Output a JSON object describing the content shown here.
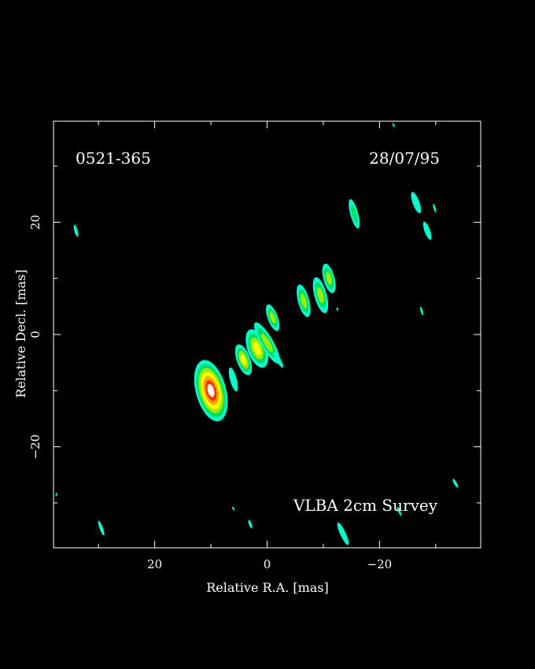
{
  "source_name": "0521-365",
  "date": "28/07/95",
  "survey_label": "VLBA 2cm Survey",
  "colors": {
    "background": "#000000",
    "frame": "#ffffff",
    "levels": [
      "#00ffcc",
      "#00dd66",
      "#99ee00",
      "#ffff00",
      "#ffaa00",
      "#ff3300",
      "#ffffff"
    ]
  },
  "chart_data": {
    "type": "contour",
    "title": "",
    "xlabel": "Relative R.A. [mas]",
    "ylabel": "Relative Decl. [mas]",
    "xlim": [
      38,
      -38
    ],
    "ylim": [
      -38,
      38
    ],
    "x_direction": "decreasing",
    "grid": false,
    "x_ticks": [
      {
        "value": 20,
        "label": "20"
      },
      {
        "value": 0,
        "label": "0"
      },
      {
        "value": -20,
        "label": "−20"
      }
    ],
    "y_ticks": [
      {
        "value": 20,
        "label": "20"
      },
      {
        "value": 0,
        "label": "0"
      },
      {
        "value": -20,
        "label": "−20"
      }
    ],
    "components": [
      {
        "x": 10.0,
        "y": -10.0,
        "major": 5.6,
        "minor": 2.7,
        "pa": 15,
        "peak_level": 6
      },
      {
        "x": 6.0,
        "y": -8.0,
        "major": 2.2,
        "minor": 0.6,
        "pa": 15,
        "peak_level": 0
      },
      {
        "x": 4.2,
        "y": -4.5,
        "major": 2.9,
        "minor": 1.2,
        "pa": 20,
        "peak_level": 3
      },
      {
        "x": 1.8,
        "y": -2.5,
        "major": 3.6,
        "minor": 1.7,
        "pa": 20,
        "peak_level": 3
      },
      {
        "x": 0.0,
        "y": -1.5,
        "major": 4.2,
        "minor": 1.1,
        "pa": 30,
        "peak_level": 2
      },
      {
        "x": -1.0,
        "y": 3.0,
        "major": 2.5,
        "minor": 0.9,
        "pa": 20,
        "peak_level": 2
      },
      {
        "x": -2.0,
        "y": -4.5,
        "major": 1.6,
        "minor": 0.4,
        "pa": 30,
        "peak_level": 0
      },
      {
        "x": -6.5,
        "y": 6.0,
        "major": 3.0,
        "minor": 1.0,
        "pa": 15,
        "peak_level": 2
      },
      {
        "x": -9.5,
        "y": 7.0,
        "major": 3.3,
        "minor": 1.1,
        "pa": 15,
        "peak_level": 2
      },
      {
        "x": -11.0,
        "y": 10.0,
        "major": 2.7,
        "minor": 1.0,
        "pa": 15,
        "peak_level": 2
      },
      {
        "x": -15.5,
        "y": 21.5,
        "major": 2.7,
        "minor": 0.7,
        "pa": 15,
        "peak_level": 1
      },
      {
        "x": -26.5,
        "y": 23.5,
        "major": 2.0,
        "minor": 0.6,
        "pa": 20,
        "peak_level": 0
      },
      {
        "x": -28.5,
        "y": 18.5,
        "major": 1.7,
        "minor": 0.5,
        "pa": 20,
        "peak_level": 0
      },
      {
        "x": -29.8,
        "y": 22.5,
        "major": 0.8,
        "minor": 0.2,
        "pa": 15,
        "peak_level": 0
      },
      {
        "x": -27.5,
        "y": 4.2,
        "major": 0.8,
        "minor": 0.2,
        "pa": 15,
        "peak_level": 0
      },
      {
        "x": -33.5,
        "y": -26.5,
        "major": 0.9,
        "minor": 0.25,
        "pa": 30,
        "peak_level": 0
      },
      {
        "x": -23.5,
        "y": -31.5,
        "major": 0.9,
        "minor": 0.2,
        "pa": 25,
        "peak_level": 0
      },
      {
        "x": 34.0,
        "y": 18.5,
        "major": 1.1,
        "minor": 0.3,
        "pa": 15,
        "peak_level": 0
      },
      {
        "x": 29.5,
        "y": -34.5,
        "major": 1.4,
        "minor": 0.3,
        "pa": 20,
        "peak_level": 0
      },
      {
        "x": 3.0,
        "y": -33.8,
        "major": 0.8,
        "minor": 0.25,
        "pa": 20,
        "peak_level": 0
      },
      {
        "x": -13.5,
        "y": -35.5,
        "major": 2.2,
        "minor": 0.5,
        "pa": 25,
        "peak_level": 0
      },
      {
        "x": 6.0,
        "y": -31.0,
        "major": 0.4,
        "minor": 0.15,
        "pa": 20,
        "peak_level": 0
      },
      {
        "x": -22.5,
        "y": 37.3,
        "major": 0.4,
        "minor": 0.15,
        "pa": 20,
        "peak_level": 0
      },
      {
        "x": 37.5,
        "y": -28.5,
        "major": 0.3,
        "minor": 0.15,
        "pa": 0,
        "peak_level": 0
      },
      {
        "x": -12.5,
        "y": 4.5,
        "major": 0.3,
        "minor": 0.15,
        "pa": 0,
        "peak_level": 0
      }
    ]
  }
}
